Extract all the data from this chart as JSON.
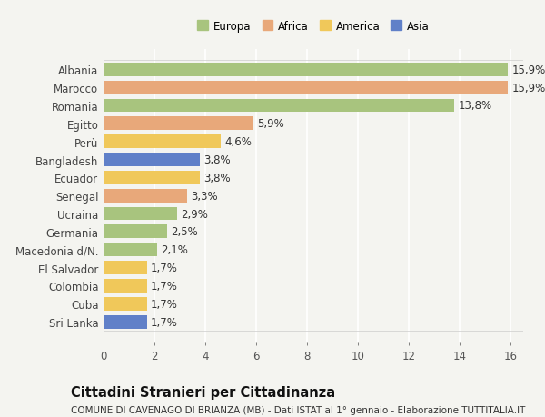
{
  "countries": [
    "Albania",
    "Marocco",
    "Romania",
    "Egitto",
    "Perù",
    "Bangladesh",
    "Ecuador",
    "Senegal",
    "Ucraina",
    "Germania",
    "Macedonia d/N.",
    "El Salvador",
    "Colombia",
    "Cuba",
    "Sri Lanka"
  ],
  "values": [
    15.9,
    15.9,
    13.8,
    5.9,
    4.6,
    3.8,
    3.8,
    3.3,
    2.9,
    2.5,
    2.1,
    1.7,
    1.7,
    1.7,
    1.7
  ],
  "labels": [
    "15,9%",
    "15,9%",
    "13,8%",
    "5,9%",
    "4,6%",
    "3,8%",
    "3,8%",
    "3,3%",
    "2,9%",
    "2,5%",
    "2,1%",
    "1,7%",
    "1,7%",
    "1,7%",
    "1,7%"
  ],
  "continents": [
    "Europa",
    "Africa",
    "Europa",
    "Africa",
    "America",
    "Asia",
    "America",
    "Africa",
    "Europa",
    "Europa",
    "Europa",
    "America",
    "America",
    "America",
    "Asia"
  ],
  "continent_colors": {
    "Europa": "#a8c47e",
    "Africa": "#e8a87a",
    "America": "#f0c85a",
    "Asia": "#6080c8"
  },
  "legend_order": [
    "Europa",
    "Africa",
    "America",
    "Asia"
  ],
  "title": "Cittadini Stranieri per Cittadinanza",
  "subtitle": "COMUNE DI CAVENAGO DI BRIANZA (MB) - Dati ISTAT al 1° gennaio - Elaborazione TUTTITALIA.IT",
  "xlim": [
    0,
    16.5
  ],
  "xticks": [
    0,
    2,
    4,
    6,
    8,
    10,
    12,
    14,
    16
  ],
  "background_color": "#f4f4f0",
  "bar_height": 0.75,
  "grid_color": "#ffffff",
  "label_fontsize": 8.5,
  "ytick_fontsize": 8.5,
  "xtick_fontsize": 8.5,
  "title_fontsize": 10.5,
  "subtitle_fontsize": 7.5
}
